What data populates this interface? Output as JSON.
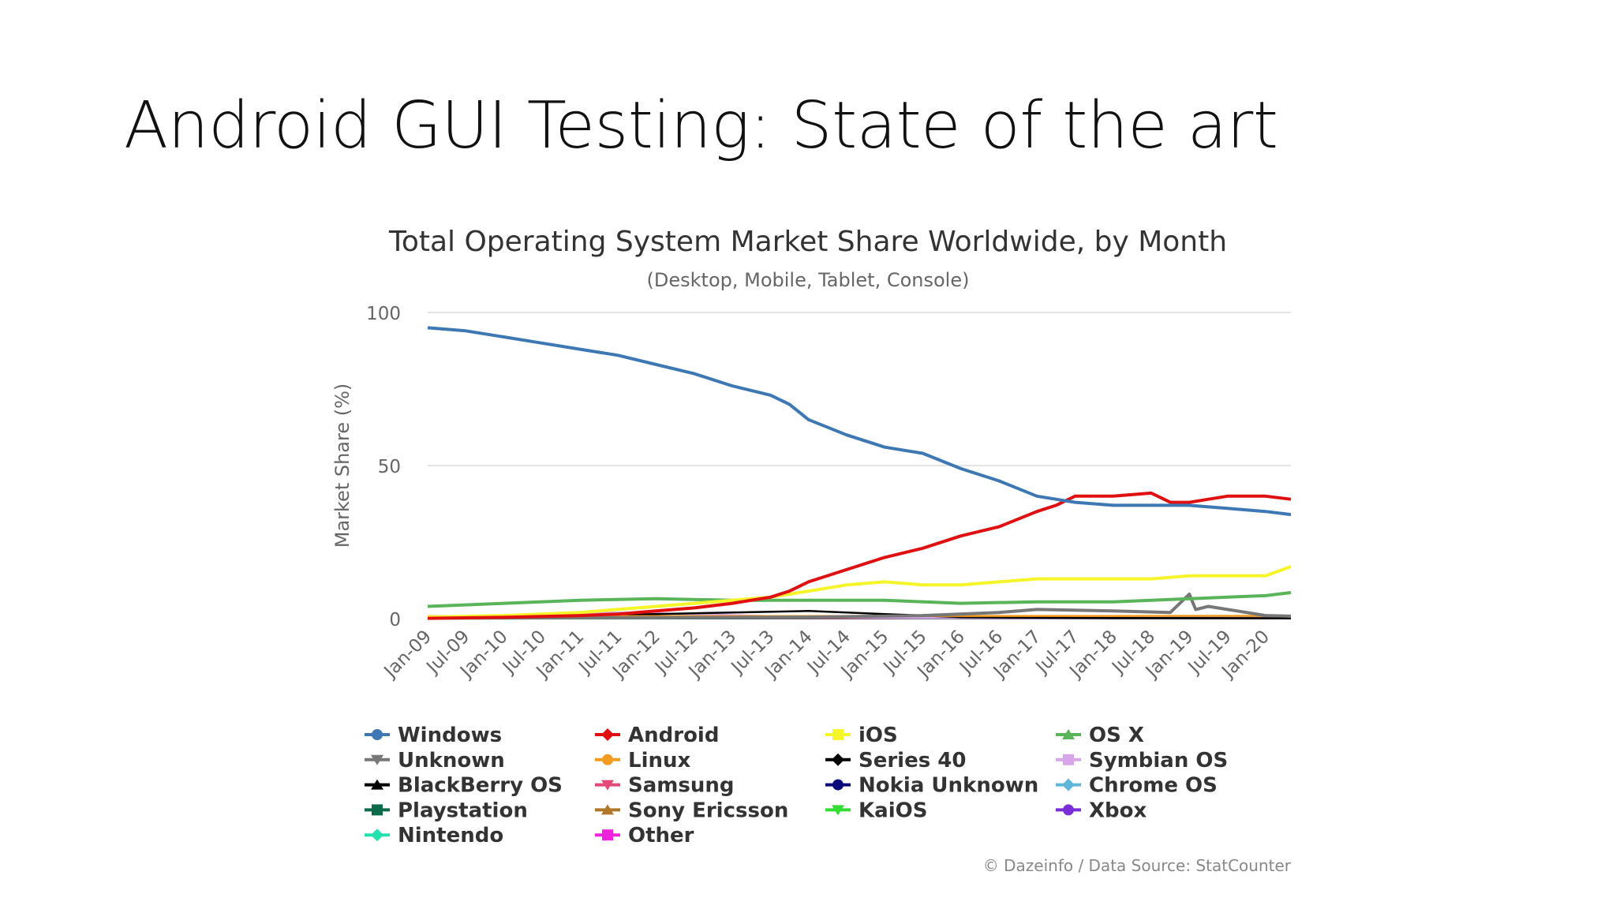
{
  "slide": {
    "title": "Android GUI Testing: State of the art"
  },
  "chart_data": {
    "type": "line",
    "title": "Total Operating System Market Share Worldwide, by Month",
    "subtitle": "(Desktop, Mobile, Tablet, Console)",
    "xlabel": "",
    "ylabel": "Market Share (%)",
    "ylim": [
      0,
      100
    ],
    "yticks": [
      0,
      50,
      100
    ],
    "xlim": [
      "2009-01",
      "2020-05"
    ],
    "xticks": [
      "Jan-09",
      "Jul-09",
      "Jan-10",
      "Jul-10",
      "Jan-11",
      "Jul-11",
      "Jan-12",
      "Jul-12",
      "Jan-13",
      "Jul-13",
      "Jan-14",
      "Jul-14",
      "Jan-15",
      "Jul-15",
      "Jan-16",
      "Jul-16",
      "Jan-17",
      "Jul-17",
      "Jan-18",
      "Jul-18",
      "Jan-19",
      "Jul-19",
      "Jan-20"
    ],
    "grid": true,
    "legend_position": "bottom",
    "credit": "© Dazeinfo / Data Source: StatCounter",
    "series": [
      {
        "name": "Windows",
        "color": "#3d78b4",
        "marker": "circle",
        "x": [
          "2009-01",
          "2009-07",
          "2010-01",
          "2010-07",
          "2011-01",
          "2011-07",
          "2012-01",
          "2012-07",
          "2013-01",
          "2013-07",
          "2013-10",
          "2014-01",
          "2014-07",
          "2015-01",
          "2015-07",
          "2016-01",
          "2016-07",
          "2017-01",
          "2017-07",
          "2018-01",
          "2018-07",
          "2019-01",
          "2019-07",
          "2020-01",
          "2020-05"
        ],
        "y": [
          95,
          94,
          92,
          90,
          88,
          86,
          83,
          80,
          76,
          73,
          70,
          65,
          60,
          56,
          54,
          49,
          45,
          40,
          38,
          37,
          37,
          37,
          36,
          35,
          34
        ]
      },
      {
        "name": "Android",
        "color": "#e01010",
        "marker": "diamond",
        "x": [
          "2009-01",
          "2010-01",
          "2011-01",
          "2011-07",
          "2012-01",
          "2012-07",
          "2013-01",
          "2013-07",
          "2013-10",
          "2014-01",
          "2014-07",
          "2015-01",
          "2015-07",
          "2016-01",
          "2016-07",
          "2017-01",
          "2017-04",
          "2017-07",
          "2018-01",
          "2018-07",
          "2018-10",
          "2019-01",
          "2019-04",
          "2019-07",
          "2020-01",
          "2020-05"
        ],
        "y": [
          0.1,
          0.4,
          1,
          1.5,
          2.5,
          3.5,
          5,
          7,
          9,
          12,
          16,
          20,
          23,
          27,
          30,
          35,
          37,
          40,
          40,
          41,
          38,
          38,
          39,
          40,
          40,
          39
        ]
      },
      {
        "name": "iOS",
        "color": "#f5f52a",
        "marker": "square",
        "x": [
          "2009-01",
          "2010-01",
          "2011-01",
          "2012-01",
          "2012-07",
          "2013-01",
          "2013-07",
          "2014-01",
          "2014-07",
          "2015-01",
          "2015-07",
          "2016-01",
          "2016-07",
          "2017-01",
          "2017-07",
          "2018-01",
          "2018-07",
          "2019-01",
          "2019-07",
          "2020-01",
          "2020-05"
        ],
        "y": [
          0.5,
          1,
          2,
          4,
          5,
          6,
          7,
          9,
          11,
          12,
          11,
          11,
          12,
          13,
          13,
          13,
          13,
          14,
          14,
          14,
          17
        ]
      },
      {
        "name": "OS X",
        "color": "#5ab55a",
        "marker": "triangle",
        "x": [
          "2009-01",
          "2010-01",
          "2011-01",
          "2012-01",
          "2013-01",
          "2014-01",
          "2015-01",
          "2016-01",
          "2017-01",
          "2018-01",
          "2018-07",
          "2019-01",
          "2019-07",
          "2020-01",
          "2020-05"
        ],
        "y": [
          4,
          5,
          6,
          6.5,
          6,
          6,
          6,
          5,
          5.5,
          5.5,
          6,
          6.5,
          7,
          7.5,
          8.5
        ]
      },
      {
        "name": "Unknown",
        "color": "#777777",
        "marker": "triangle-down",
        "x": [
          "2009-01",
          "2012-01",
          "2014-01",
          "2015-07",
          "2016-07",
          "2017-01",
          "2018-01",
          "2018-10",
          "2019-01",
          "2019-02",
          "2019-04",
          "2019-07",
          "2019-10",
          "2020-01",
          "2020-05"
        ],
        "y": [
          0.2,
          0.3,
          0.5,
          1,
          2,
          3,
          2.5,
          2,
          8,
          3,
          4,
          3,
          2,
          1,
          0.8
        ]
      },
      {
        "name": "Linux",
        "color": "#f39c1f",
        "marker": "circle",
        "x": [
          "2009-01",
          "2020-05"
        ],
        "y": [
          0.8,
          0.9
        ]
      },
      {
        "name": "Series 40",
        "color": "#000000",
        "marker": "diamond",
        "x": [
          "2009-01",
          "2010-07",
          "2012-01",
          "2013-01",
          "2014-01",
          "2014-07",
          "2015-01",
          "2015-07",
          "2016-01",
          "2017-01",
          "2018-01",
          "2020-05"
        ],
        "y": [
          0.3,
          0.8,
          1.5,
          2,
          2.5,
          2,
          1.5,
          1,
          0.5,
          0.3,
          0.2,
          0.1
        ]
      },
      {
        "name": "Symbian OS",
        "color": "#d6a6e8",
        "marker": "square",
        "x": [
          "2009-01",
          "2010-07",
          "2011-07",
          "2012-07",
          "2013-07",
          "2014-07",
          "2015-07",
          "2020-05"
        ],
        "y": [
          0.5,
          1.2,
          2,
          1.5,
          0.8,
          0.4,
          0.2,
          0.1
        ]
      },
      {
        "name": "BlackBerry OS",
        "color": "#000000",
        "marker": "triangle",
        "x": [
          "2009-01",
          "2011-07",
          "2013-01",
          "2014-07",
          "2016-01",
          "2020-05"
        ],
        "y": [
          0.3,
          0.8,
          0.9,
          0.6,
          0.3,
          0.1
        ]
      },
      {
        "name": "Samsung",
        "color": "#e24a7a",
        "marker": "triangle-down",
        "x": [
          "2009-01",
          "2020-05"
        ],
        "y": [
          0.2,
          0.2
        ]
      },
      {
        "name": "Nokia Unknown",
        "color": "#0a0a7a",
        "marker": "circle",
        "x": [
          "2009-01",
          "2020-05"
        ],
        "y": [
          0.2,
          0.1
        ]
      },
      {
        "name": "Chrome OS",
        "color": "#5fb6d8",
        "marker": "diamond",
        "x": [
          "2009-01",
          "2020-05"
        ],
        "y": [
          0.1,
          0.3
        ]
      },
      {
        "name": "Playstation",
        "color": "#0a6a4a",
        "marker": "square",
        "x": [
          "2009-01",
          "2020-05"
        ],
        "y": [
          0.1,
          0.1
        ]
      },
      {
        "name": "Sony Ericsson",
        "color": "#b0762a",
        "marker": "triangle",
        "x": [
          "2009-01",
          "2020-05"
        ],
        "y": [
          0.2,
          0.1
        ]
      },
      {
        "name": "KaiOS",
        "color": "#33dd33",
        "marker": "triangle-down",
        "x": [
          "2009-01",
          "2020-05"
        ],
        "y": [
          0,
          0.2
        ]
      },
      {
        "name": "Xbox",
        "color": "#7a2ed8",
        "marker": "circle",
        "x": [
          "2009-01",
          "2020-05"
        ],
        "y": [
          0.1,
          0.1
        ]
      },
      {
        "name": "Nintendo",
        "color": "#22e0b0",
        "marker": "diamond",
        "x": [
          "2009-01",
          "2020-05"
        ],
        "y": [
          0.1,
          0.1
        ]
      },
      {
        "name": "Other",
        "color": "#ee22dd",
        "marker": "square",
        "x": [
          "2009-01",
          "2020-05"
        ],
        "y": [
          0.4,
          0.4
        ]
      }
    ]
  }
}
